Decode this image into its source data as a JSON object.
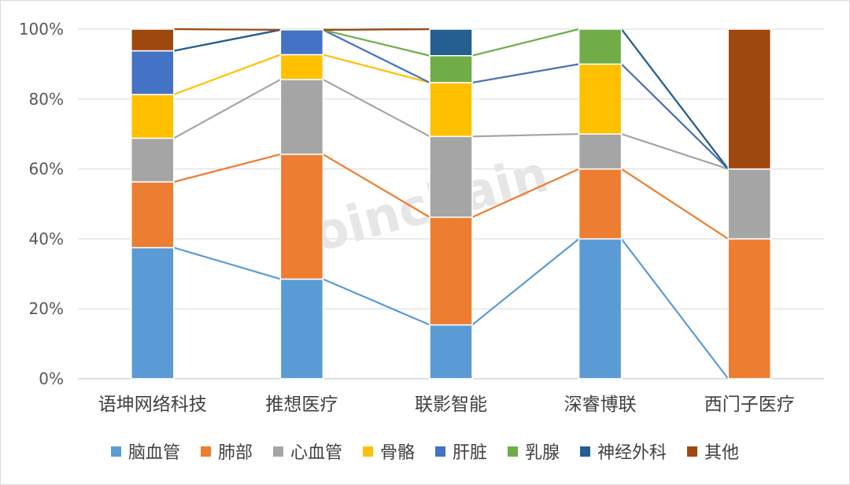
{
  "watermark": "Joinchain",
  "chart_data": {
    "type": "bar",
    "stacked": true,
    "normalized_percent": true,
    "title": "",
    "xlabel": "",
    "ylabel": "",
    "ylim": [
      0,
      100
    ],
    "yticks": [
      "0%",
      "20%",
      "40%",
      "60%",
      "80%",
      "100%"
    ],
    "grid": true,
    "legend_position": "bottom",
    "series_lines": true,
    "categories": [
      "语坤网络科技",
      "推想医疗",
      "联影智能",
      "深睿博联",
      "西门子医疗"
    ],
    "series": [
      {
        "name": "脑血管",
        "color": "#5B9BD5",
        "values": [
          37.5,
          28.5,
          15.4,
          40,
          0
        ]
      },
      {
        "name": "肺部",
        "color": "#ED7D31",
        "values": [
          18.8,
          35.7,
          30.8,
          20,
          40
        ]
      },
      {
        "name": "心血管",
        "color": "#A5A5A5",
        "values": [
          12.5,
          21.4,
          23.1,
          10,
          20
        ]
      },
      {
        "name": "骨骼",
        "color": "#FFC000",
        "values": [
          12.5,
          7.1,
          15.4,
          20,
          0
        ]
      },
      {
        "name": "肝脏",
        "color": "#4472C4",
        "values": [
          12.5,
          7.1,
          0,
          0,
          0
        ]
      },
      {
        "name": "乳腺",
        "color": "#70AD47",
        "values": [
          0,
          0,
          7.7,
          10,
          0
        ]
      },
      {
        "name": "神经外科",
        "color": "#255E91",
        "values": [
          0,
          0,
          7.6,
          0,
          0
        ]
      },
      {
        "name": "其他",
        "color": "#9E480E",
        "values": [
          6.2,
          0,
          0,
          0,
          40
        ]
      }
    ]
  }
}
